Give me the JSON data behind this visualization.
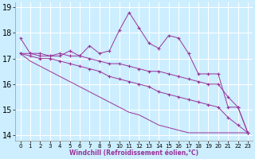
{
  "xlabel": "Windchill (Refroidissement éolien,°C)",
  "x": [
    0,
    1,
    2,
    3,
    4,
    5,
    6,
    7,
    8,
    9,
    10,
    11,
    12,
    13,
    14,
    15,
    16,
    17,
    18,
    19,
    20,
    21,
    22,
    23
  ],
  "line1": [
    17.8,
    17.2,
    17.2,
    17.1,
    17.1,
    17.3,
    17.1,
    17.5,
    17.2,
    17.3,
    18.1,
    18.8,
    18.2,
    17.6,
    17.4,
    17.9,
    17.8,
    17.2,
    16.4,
    16.4,
    16.4,
    15.1,
    15.1,
    14.1
  ],
  "line2": [
    17.2,
    17.2,
    17.1,
    17.1,
    17.2,
    17.1,
    17.1,
    17.0,
    16.9,
    16.8,
    16.8,
    16.7,
    16.6,
    16.5,
    16.5,
    16.4,
    16.3,
    16.2,
    16.1,
    16.0,
    16.0,
    15.5,
    15.1,
    14.1
  ],
  "line3": [
    17.2,
    17.1,
    17.0,
    17.0,
    16.9,
    16.8,
    16.7,
    16.6,
    16.5,
    16.3,
    16.2,
    16.1,
    16.0,
    15.9,
    15.7,
    15.6,
    15.5,
    15.4,
    15.3,
    15.2,
    15.1,
    14.7,
    14.4,
    14.1
  ],
  "line4": [
    17.2,
    16.9,
    16.7,
    16.5,
    16.3,
    16.1,
    15.9,
    15.7,
    15.5,
    15.3,
    15.1,
    14.9,
    14.8,
    14.6,
    14.4,
    14.3,
    14.2,
    14.1,
    14.1,
    14.1,
    14.1,
    14.1,
    14.1,
    14.1
  ],
  "color": "#993399",
  "bg_color": "#cceeff",
  "grid_color": "#ffffff",
  "ylim": [
    13.8,
    19.2
  ],
  "xlim": [
    -0.5,
    23.5
  ],
  "yticks": [
    14,
    15,
    16,
    17,
    18,
    19
  ],
  "ytick_fontsize": 7,
  "xtick_fontsize": 5
}
